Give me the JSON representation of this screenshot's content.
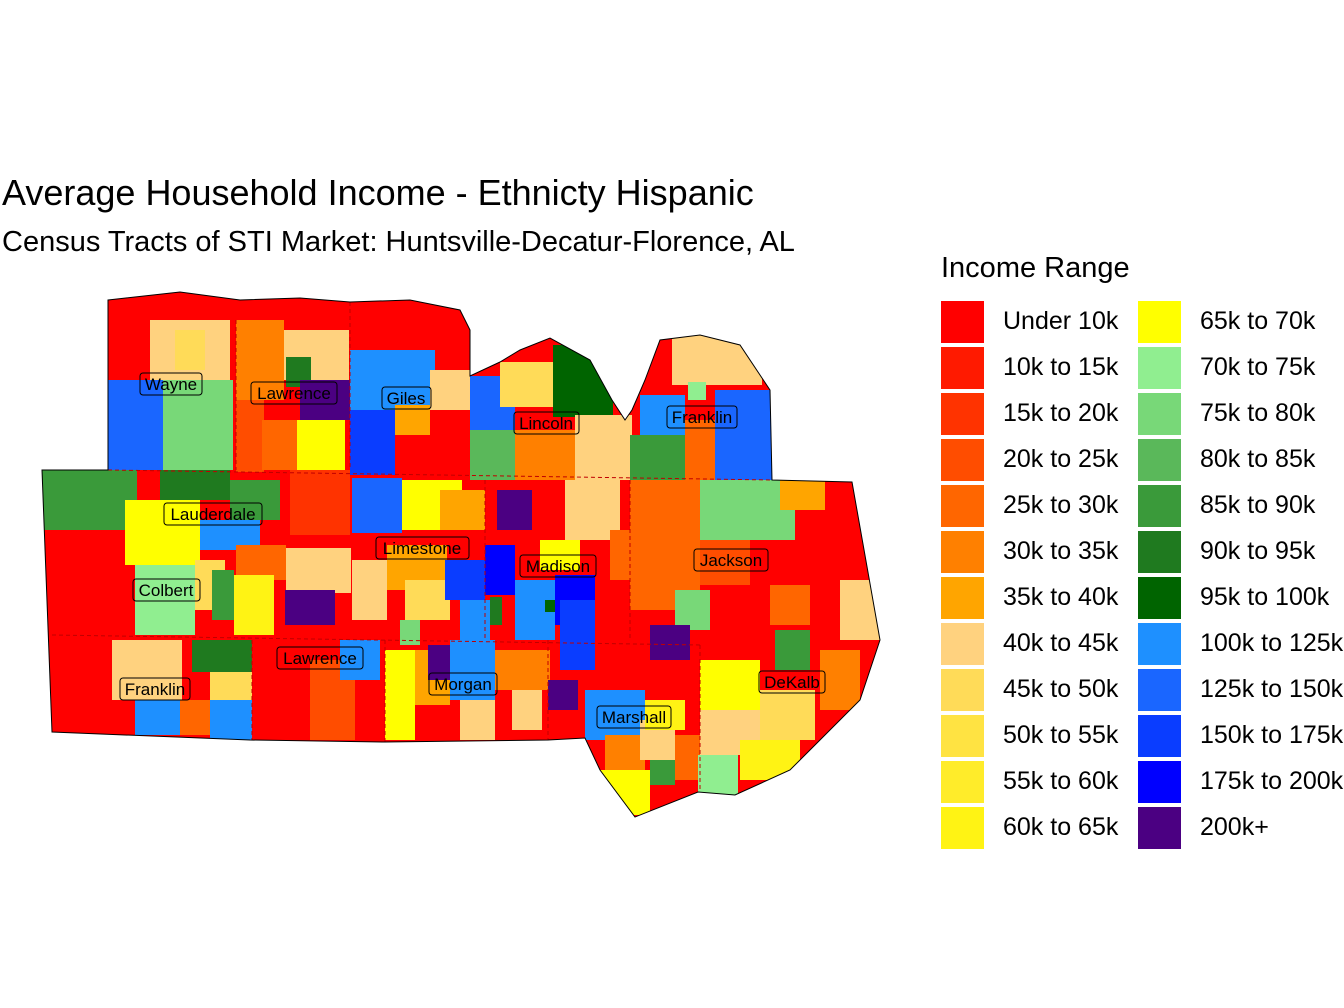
{
  "title": "Average Household Income - Ethnicty Hispanic",
  "subtitle": "Census Tracts of STI Market: Huntsville-Decatur-Florence, AL",
  "legend": {
    "title": "Income Range",
    "items": [
      {
        "label": "Under 10k",
        "color": "#ff0000"
      },
      {
        "label": "10k to 15k",
        "color": "#ff1a00"
      },
      {
        "label": "15k to 20k",
        "color": "#ff3300"
      },
      {
        "label": "20k to 25k",
        "color": "#ff4d00"
      },
      {
        "label": "25k to 30k",
        "color": "#ff6600"
      },
      {
        "label": "30k to 35k",
        "color": "#ff8000"
      },
      {
        "label": "35k to 40k",
        "color": "#ffa500"
      },
      {
        "label": "40k to 45k",
        "color": "#ffd27f"
      },
      {
        "label": "45k to 50k",
        "color": "#ffdb58"
      },
      {
        "label": "50k to 55k",
        "color": "#ffe342"
      },
      {
        "label": "55k to 60k",
        "color": "#ffec2a"
      },
      {
        "label": "60k to 65k",
        "color": "#fff314"
      },
      {
        "label": "65k to 70k",
        "color": "#ffff00"
      },
      {
        "label": "70k to 75k",
        "color": "#90ee90"
      },
      {
        "label": "75k to 80k",
        "color": "#78d878"
      },
      {
        "label": "80k to 85k",
        "color": "#5ab85a"
      },
      {
        "label": "85k to 90k",
        "color": "#3a9a3a"
      },
      {
        "label": "90k to 95k",
        "color": "#1f7a1f"
      },
      {
        "label": "95k to 100k",
        "color": "#006400"
      },
      {
        "label": "100k to 125k",
        "color": "#1e90ff"
      },
      {
        "label": "125k to 150k",
        "color": "#1a66ff"
      },
      {
        "label": "150k to 175k",
        "color": "#0a3dff"
      },
      {
        "label": "175k to 200k",
        "color": "#0000ff"
      },
      {
        "label": "200k+",
        "color": "#4b0082"
      }
    ]
  },
  "counties": [
    "Wayne",
    "Lawrence",
    "Giles",
    "Lincoln",
    "Franklin",
    "Lauderdale",
    "Limestone",
    "Madison",
    "Jackson",
    "Colbert",
    "Lawrence",
    "Morgan",
    "Franklin",
    "DeKalb",
    "Marshall"
  ]
}
